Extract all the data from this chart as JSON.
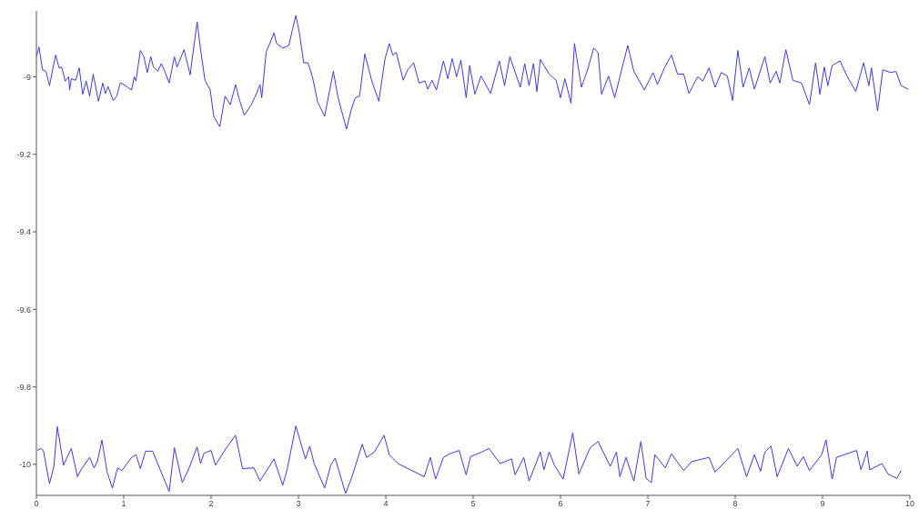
{
  "chart_data": {
    "type": "line",
    "xlim": [
      0,
      10
    ],
    "ylim": [
      -10.08,
      -8.83
    ],
    "xticks": [
      0,
      1,
      2,
      3,
      4,
      5,
      6,
      7,
      8,
      9,
      10
    ],
    "yticks": [
      -10,
      -9.8,
      -9.6,
      -9.4,
      -9.2,
      -9
    ],
    "grid": false,
    "marker": "none",
    "line_style": "solid",
    "series": [
      {
        "color": "#3a3ae6",
        "x": [
          0.0,
          0.03,
          0.07,
          0.11,
          0.15,
          0.22,
          0.26,
          0.29,
          0.33,
          0.37,
          0.38,
          0.4,
          0.45,
          0.49,
          0.53,
          0.57,
          0.61,
          0.65,
          0.71,
          0.76,
          0.79,
          0.82,
          0.88,
          0.92,
          0.96,
          1.0,
          1.09,
          1.12,
          1.14,
          1.19,
          1.23,
          1.27,
          1.31,
          1.34,
          1.39,
          1.43,
          1.47,
          1.52,
          1.58,
          1.61,
          1.69,
          1.76,
          1.84,
          1.88,
          1.93,
          1.99,
          2.03,
          2.1,
          2.16,
          2.22,
          2.28,
          2.32,
          2.38,
          2.46,
          2.52,
          2.56,
          2.58,
          2.63,
          2.72,
          2.75,
          2.82,
          2.89,
          2.93,
          2.97,
          3.01,
          3.06,
          3.11,
          3.16,
          3.22,
          3.3,
          3.35,
          3.4,
          3.45,
          3.55,
          3.6,
          3.65,
          3.7,
          3.76,
          3.84,
          3.92,
          3.99,
          4.04,
          4.08,
          4.12,
          4.2,
          4.25,
          4.32,
          4.38,
          4.45,
          4.48,
          4.53,
          4.58,
          4.66,
          4.71,
          4.76,
          4.81,
          4.86,
          4.92,
          4.96,
          5.02,
          5.09,
          5.2,
          5.3,
          5.36,
          5.42,
          5.54,
          5.59,
          5.64,
          5.69,
          5.73,
          5.77,
          5.87,
          5.95,
          6.0,
          6.05,
          6.12,
          6.16,
          6.24,
          6.31,
          6.38,
          6.43,
          6.47,
          6.55,
          6.62,
          6.77,
          6.84,
          6.96,
          7.06,
          7.11,
          7.19,
          7.27,
          7.34,
          7.41,
          7.47,
          7.57,
          7.63,
          7.7,
          7.77,
          7.84,
          7.91,
          7.97,
          8.03,
          8.09,
          8.16,
          8.22,
          8.34,
          8.4,
          8.47,
          8.51,
          8.58,
          8.66,
          8.76,
          8.85,
          8.92,
          8.97,
          9.02,
          9.06,
          9.11,
          9.2,
          9.28,
          9.38,
          9.47,
          9.53,
          9.56,
          9.63,
          9.69,
          9.78,
          9.84,
          9.9,
          9.98
        ],
        "values": [
          -8.948,
          -8.923,
          -8.982,
          -8.986,
          -9.023,
          -8.944,
          -8.977,
          -8.975,
          -9.011,
          -9.0,
          -9.034,
          -9.005,
          -9.009,
          -8.977,
          -9.045,
          -9.011,
          -9.05,
          -8.993,
          -9.063,
          -9.016,
          -9.043,
          -9.025,
          -9.061,
          -9.05,
          -9.016,
          -9.02,
          -9.034,
          -9.0,
          -9.011,
          -8.932,
          -8.948,
          -8.989,
          -8.948,
          -8.975,
          -8.986,
          -8.966,
          -8.986,
          -9.016,
          -8.948,
          -8.975,
          -8.93,
          -8.995,
          -8.858,
          -8.93,
          -9.009,
          -9.034,
          -9.102,
          -9.129,
          -9.05,
          -9.072,
          -9.02,
          -9.056,
          -9.099,
          -9.072,
          -9.043,
          -9.02,
          -9.054,
          -8.937,
          -8.887,
          -8.914,
          -8.926,
          -8.919,
          -8.88,
          -8.842,
          -8.885,
          -8.964,
          -8.964,
          -9.0,
          -9.065,
          -9.102,
          -9.043,
          -8.986,
          -9.05,
          -9.135,
          -9.088,
          -9.054,
          -9.05,
          -8.941,
          -9.011,
          -9.063,
          -8.955,
          -8.914,
          -8.944,
          -8.937,
          -9.009,
          -8.982,
          -8.964,
          -9.016,
          -9.011,
          -9.032,
          -9.009,
          -9.034,
          -8.959,
          -9.005,
          -8.953,
          -9.0,
          -8.957,
          -9.054,
          -8.971,
          -9.045,
          -8.998,
          -9.043,
          -8.959,
          -9.023,
          -8.948,
          -9.027,
          -8.966,
          -9.023,
          -8.966,
          -9.038,
          -8.955,
          -8.993,
          -9.009,
          -9.054,
          -9.005,
          -9.068,
          -8.914,
          -9.027,
          -8.982,
          -8.926,
          -8.937,
          -9.045,
          -8.998,
          -9.054,
          -8.919,
          -8.986,
          -9.034,
          -8.989,
          -9.02,
          -8.977,
          -8.944,
          -8.993,
          -8.993,
          -9.043,
          -9.0,
          -9.011,
          -8.977,
          -9.027,
          -8.989,
          -8.998,
          -9.061,
          -8.932,
          -9.027,
          -8.977,
          -9.032,
          -8.948,
          -9.016,
          -8.986,
          -9.016,
          -8.93,
          -9.009,
          -9.016,
          -9.072,
          -8.964,
          -9.045,
          -8.975,
          -9.023,
          -8.971,
          -8.959,
          -8.998,
          -9.038,
          -8.964,
          -9.023,
          -8.977,
          -9.088,
          -8.982,
          -8.989,
          -8.986,
          -9.023,
          -9.032
        ]
      },
      {
        "color": "#3a3ae6",
        "x": [
          0.01,
          0.05,
          0.08,
          0.15,
          0.2,
          0.24,
          0.31,
          0.4,
          0.47,
          0.51,
          0.61,
          0.66,
          0.7,
          0.75,
          0.81,
          0.87,
          0.93,
          0.98,
          1.09,
          1.14,
          1.19,
          1.25,
          1.33,
          1.38,
          1.52,
          1.58,
          1.67,
          1.74,
          1.84,
          1.88,
          1.92,
          2.0,
          2.05,
          2.17,
          2.28,
          2.36,
          2.49,
          2.56,
          2.72,
          2.82,
          2.87,
          2.97,
          3.08,
          3.13,
          3.18,
          3.3,
          3.37,
          3.42,
          3.54,
          3.61,
          3.73,
          3.78,
          3.87,
          3.98,
          4.04,
          4.14,
          4.44,
          4.51,
          4.57,
          4.66,
          4.73,
          4.84,
          4.92,
          4.97,
          5.1,
          5.18,
          5.31,
          5.44,
          5.48,
          5.58,
          5.64,
          5.77,
          5.81,
          5.87,
          5.93,
          6.03,
          6.14,
          6.21,
          6.34,
          6.43,
          6.57,
          6.64,
          6.68,
          6.75,
          6.84,
          6.92,
          6.98,
          7.04,
          7.08,
          7.2,
          7.27,
          7.41,
          7.5,
          7.7,
          7.77,
          8.03,
          8.13,
          8.22,
          8.29,
          8.34,
          8.41,
          8.48,
          8.61,
          8.71,
          8.78,
          8.85,
          8.99,
          9.04,
          9.11,
          9.16,
          9.39,
          9.44,
          9.51,
          9.54,
          9.68,
          9.75,
          9.85,
          9.9
        ],
        "values": [
          -9.964,
          -9.959,
          -9.964,
          -10.05,
          -10.005,
          -9.903,
          -10.002,
          -9.959,
          -10.032,
          -10.014,
          -9.982,
          -10.009,
          -9.991,
          -9.937,
          -10.02,
          -10.061,
          -10.009,
          -10.016,
          -9.982,
          -9.975,
          -10.011,
          -9.966,
          -9.966,
          -9.993,
          -10.07,
          -9.957,
          -10.047,
          -10.014,
          -9.955,
          -9.998,
          -9.971,
          -9.964,
          -10.002,
          -9.959,
          -9.925,
          -10.011,
          -10.009,
          -10.043,
          -9.986,
          -10.054,
          -10.014,
          -9.901,
          -9.986,
          -9.953,
          -9.998,
          -10.061,
          -10.002,
          -9.984,
          -10.075,
          -10.034,
          -9.948,
          -9.982,
          -9.968,
          -9.925,
          -9.975,
          -9.998,
          -10.032,
          -9.982,
          -10.038,
          -9.982,
          -9.973,
          -9.964,
          -10.027,
          -9.98,
          -9.968,
          -9.959,
          -9.998,
          -9.986,
          -10.027,
          -9.982,
          -10.043,
          -9.968,
          -10.014,
          -9.968,
          -10.002,
          -10.038,
          -9.919,
          -10.025,
          -9.957,
          -9.941,
          -10.005,
          -9.968,
          -10.032,
          -9.982,
          -10.043,
          -9.941,
          -10.036,
          -10.047,
          -9.975,
          -10.009,
          -9.973,
          -10.016,
          -9.993,
          -9.982,
          -10.02,
          -9.959,
          -10.032,
          -9.975,
          -10.018,
          -9.968,
          -9.953,
          -10.032,
          -9.959,
          -10.005,
          -9.98,
          -10.016,
          -9.975,
          -9.937,
          -10.038,
          -9.982,
          -9.964,
          -10.014,
          -9.966,
          -10.014,
          -9.998,
          -10.025,
          -10.036,
          -10.016
        ]
      }
    ]
  }
}
